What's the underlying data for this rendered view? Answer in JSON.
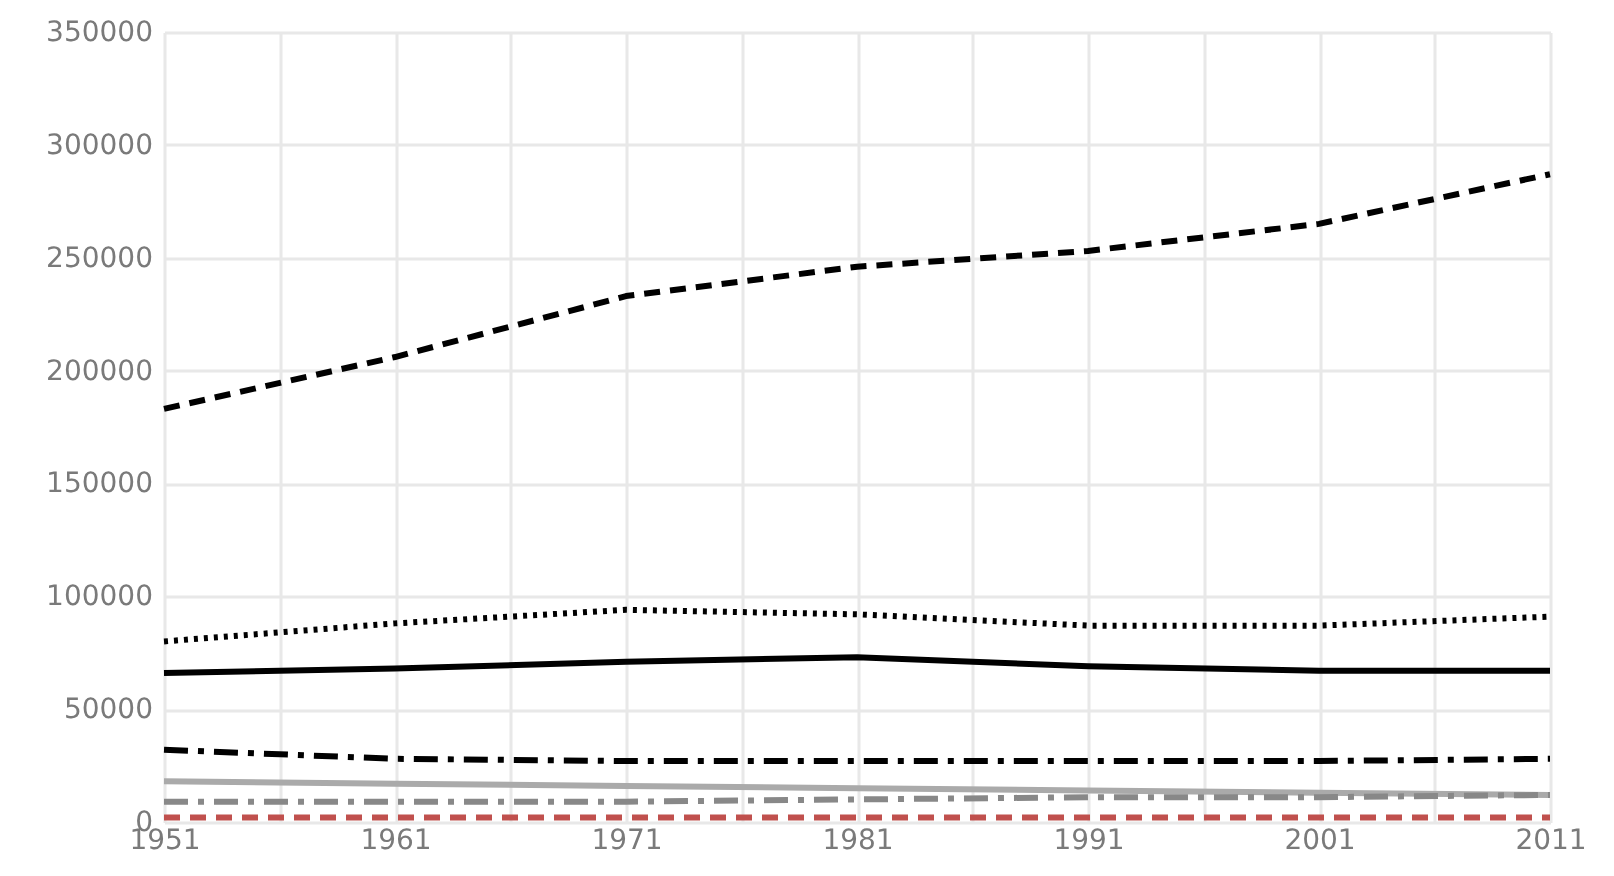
{
  "chart_data": {
    "type": "line",
    "x": [
      1951,
      1961,
      1971,
      1981,
      1991,
      2001,
      2011
    ],
    "series": [
      {
        "color": "#000000",
        "line_style": "dashed",
        "values": [
          183000,
          206000,
          233000,
          246000,
          253000,
          265000,
          287000
        ]
      },
      {
        "color": "#000000",
        "line_style": "dotted",
        "values": [
          80000,
          88000,
          94000,
          92000,
          87000,
          87000,
          91000
        ]
      },
      {
        "color": "#000000",
        "line_style": "solid",
        "values": [
          66000,
          68000,
          71000,
          73000,
          69000,
          67000,
          67000
        ]
      },
      {
        "color": "#000000",
        "line_style": "dashdot",
        "values": [
          32000,
          28000,
          27000,
          27000,
          27000,
          27000,
          28000
        ]
      },
      {
        "color": "#aaaaaa",
        "line_style": "solid",
        "values": [
          18000,
          17000,
          16000,
          15000,
          14000,
          13000,
          12000
        ]
      },
      {
        "color": "#888888",
        "line_style": "dashdot",
        "values": [
          9000,
          9000,
          9000,
          10000,
          11000,
          11000,
          12000
        ]
      },
      {
        "color": "#c0504d",
        "line_style": "dashed",
        "values": [
          2000,
          2000,
          2000,
          2000,
          2000,
          2000,
          2000
        ]
      }
    ],
    "xlim": [
      1951,
      2011
    ],
    "xticks": [
      1951,
      {
        "value": 1956,
        "label": null
      },
      1961,
      {
        "value": 1966,
        "label": null
      },
      1971,
      {
        "value": 1976,
        "label": null
      },
      1981,
      {
        "value": 1986,
        "label": null
      },
      1991,
      {
        "value": 1996,
        "label": null
      },
      2001,
      {
        "value": 2006,
        "label": null
      },
      2011
    ],
    "ylim": [
      0,
      350000
    ],
    "yticks": [
      0,
      50000,
      100000,
      150000,
      200000,
      250000,
      300000,
      350000
    ],
    "grid": true
  }
}
